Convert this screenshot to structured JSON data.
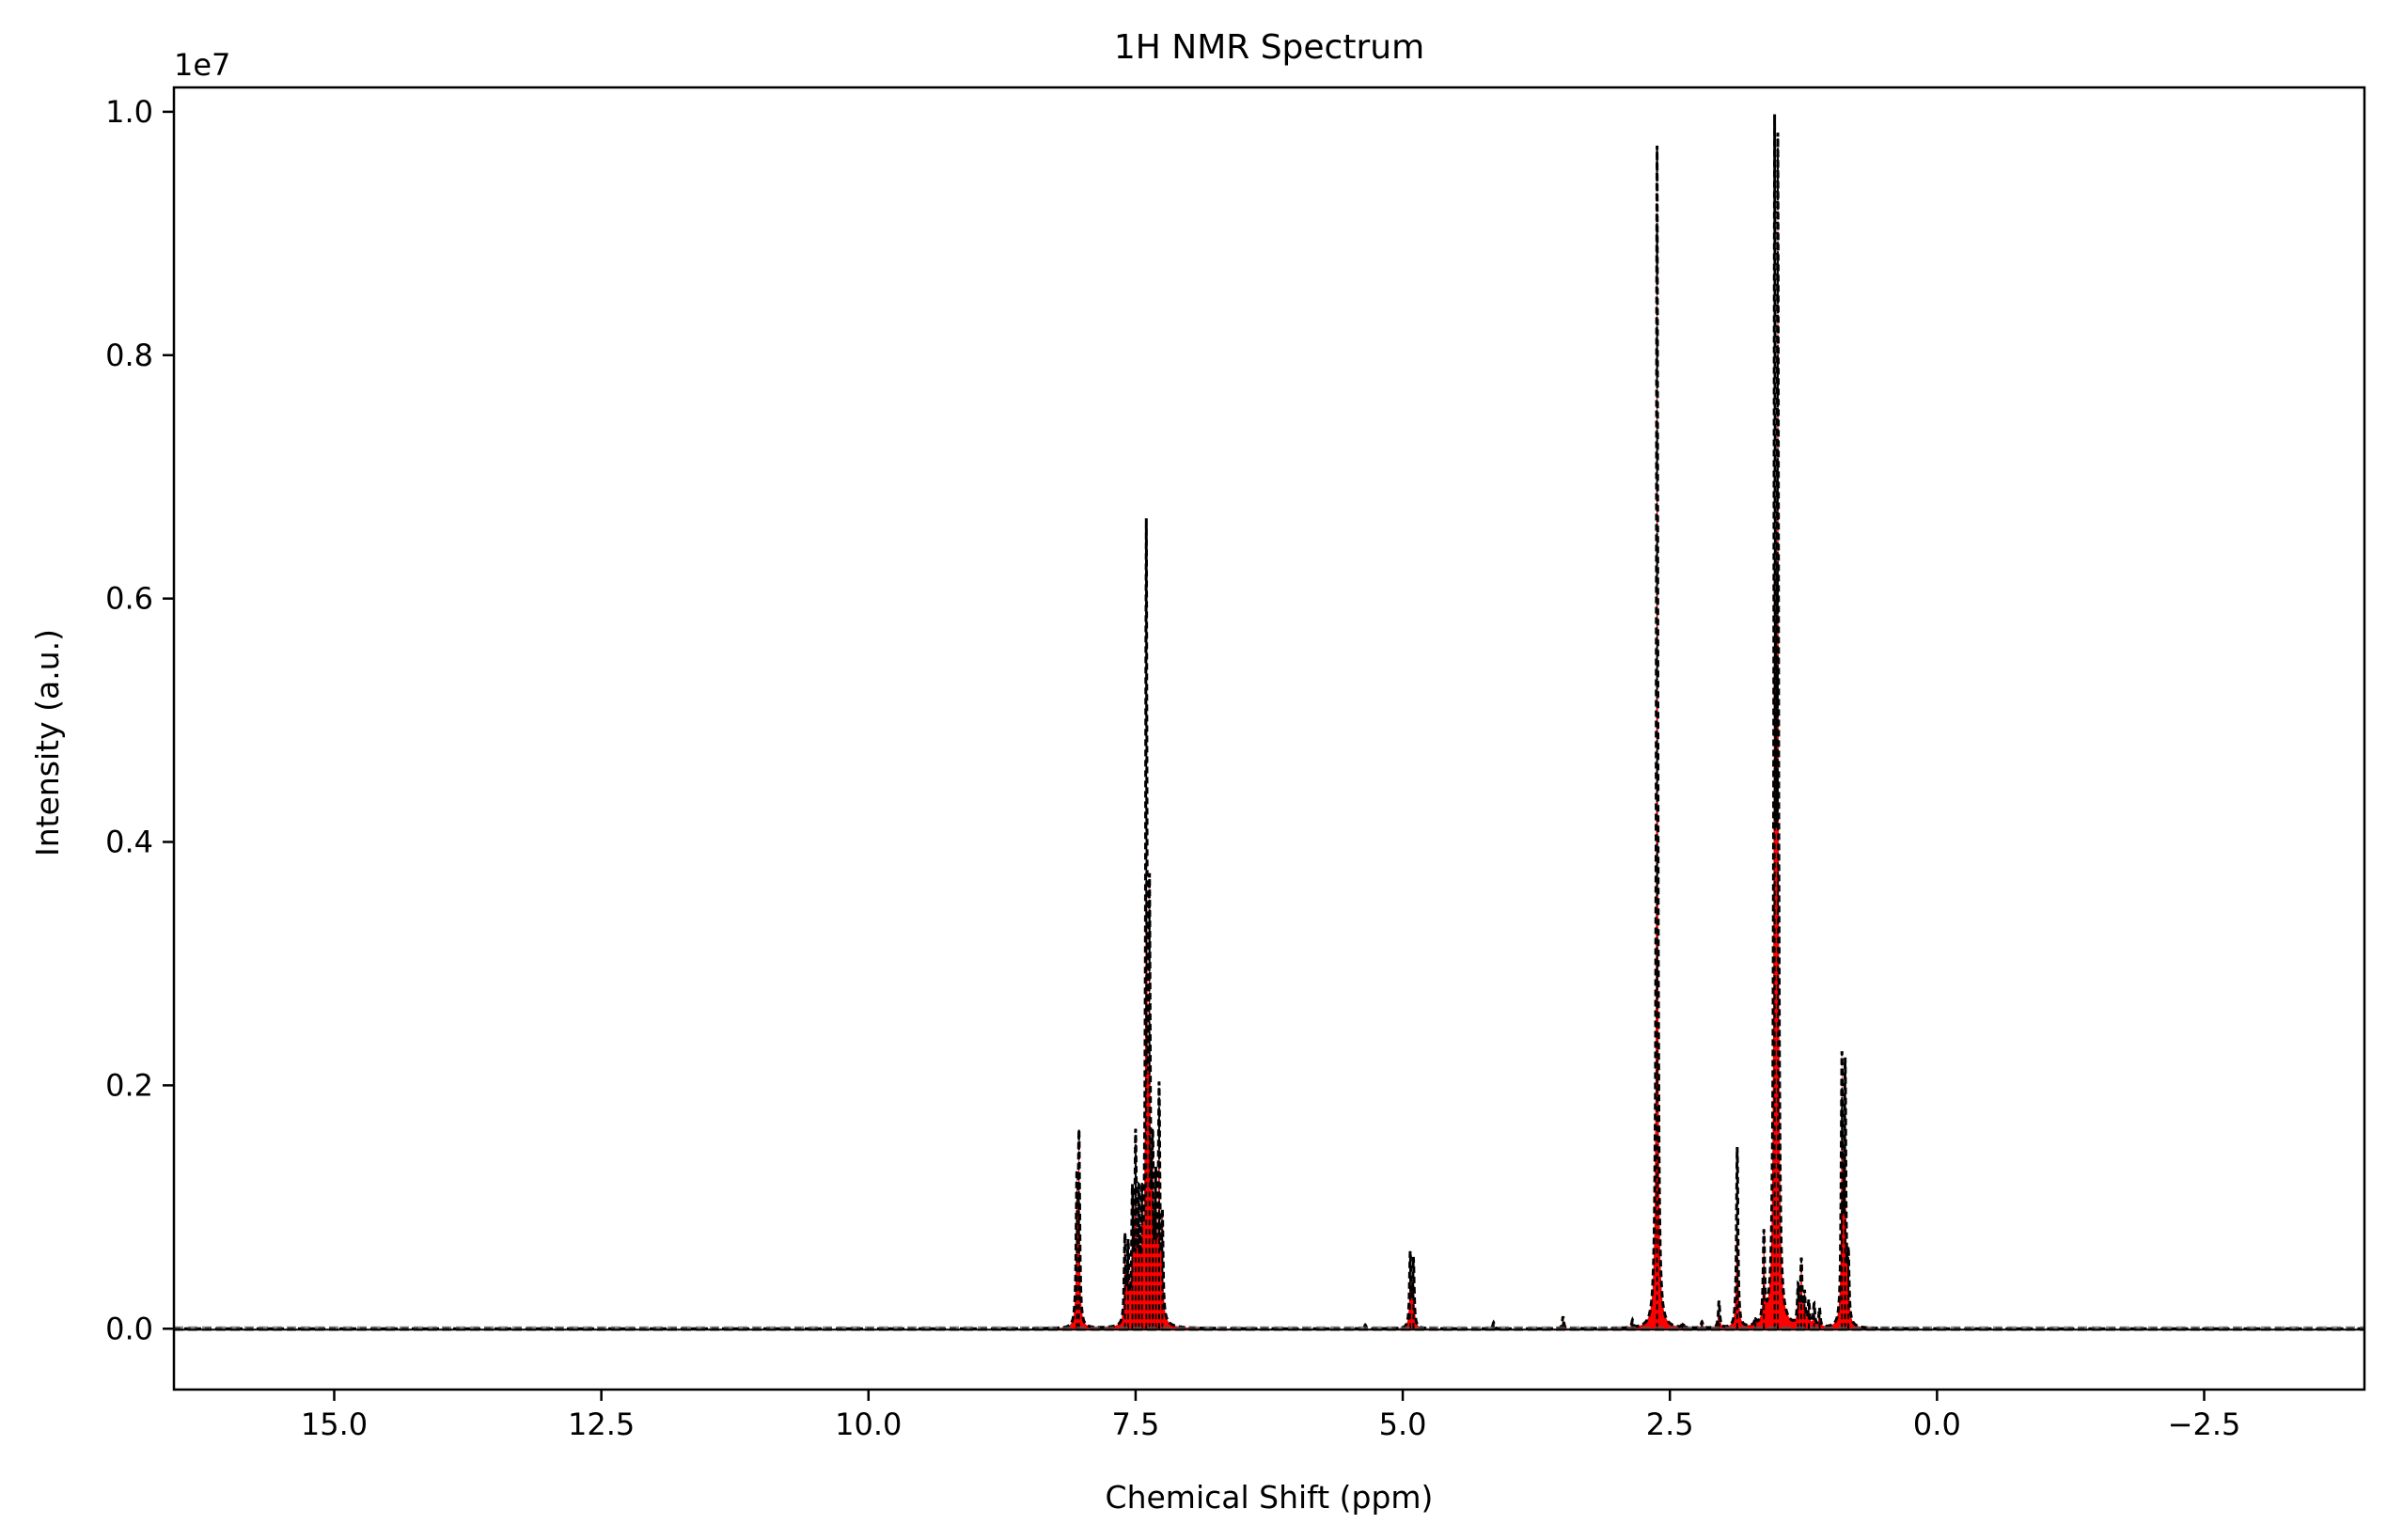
{
  "chart_data": {
    "type": "line",
    "title": "1H NMR Spectrum",
    "xlabel": "Chemical Shift (ppm)",
    "ylabel": "Intensity (a.u.)",
    "y_offset_label": "1e7",
    "xlim": [
      16.5,
      -4.0
    ],
    "ylim": [
      -0.05,
      1.02
    ],
    "x_reversed": true,
    "grid": false,
    "legend": "none",
    "x_ticks": [
      15.0,
      12.5,
      10.0,
      7.5,
      5.0,
      2.5,
      0.0,
      -2.5
    ],
    "x_tick_labels": [
      "15.0",
      "12.5",
      "10.0",
      "7.5",
      "5.0",
      "2.5",
      "0.0",
      "−2.5"
    ],
    "y_ticks": [
      0.0,
      0.2,
      0.4,
      0.6,
      0.8,
      1.0
    ],
    "y_tick_labels": [
      "0.0",
      "0.2",
      "0.4",
      "0.6",
      "0.8",
      "1.0"
    ],
    "series_colors": {
      "fill": "#ff0000",
      "dashed_line": "#000000",
      "baseline": "#000000"
    },
    "peaks": [
      {
        "x": 8.03,
        "y": 0.148
      },
      {
        "x": 8.05,
        "y": 0.11
      },
      {
        "x": 7.6,
        "y": 0.07
      },
      {
        "x": 7.57,
        "y": 0.06
      },
      {
        "x": 7.53,
        "y": 0.1
      },
      {
        "x": 7.5,
        "y": 0.143
      },
      {
        "x": 7.47,
        "y": 0.09
      },
      {
        "x": 7.44,
        "y": 0.08
      },
      {
        "x": 7.4,
        "y": 0.635
      },
      {
        "x": 7.37,
        "y": 0.318
      },
      {
        "x": 7.34,
        "y": 0.12
      },
      {
        "x": 7.31,
        "y": 0.1
      },
      {
        "x": 7.28,
        "y": 0.183
      },
      {
        "x": 7.25,
        "y": 0.08
      },
      {
        "x": 5.35,
        "y": 0.003
      },
      {
        "x": 4.93,
        "y": 0.06
      },
      {
        "x": 4.9,
        "y": 0.055
      },
      {
        "x": 4.15,
        "y": 0.005
      },
      {
        "x": 3.5,
        "y": 0.01
      },
      {
        "x": 2.85,
        "y": 0.006
      },
      {
        "x": 2.62,
        "y": 0.972
      },
      {
        "x": 2.38,
        "y": 0.004
      },
      {
        "x": 2.2,
        "y": 0.005
      },
      {
        "x": 2.04,
        "y": 0.022
      },
      {
        "x": 1.87,
        "y": 0.148
      },
      {
        "x": 1.7,
        "y": 0.005
      },
      {
        "x": 1.62,
        "y": 0.072
      },
      {
        "x": 1.52,
        "y": 0.936
      },
      {
        "x": 1.49,
        "y": 0.92
      },
      {
        "x": 1.3,
        "y": 0.03
      },
      {
        "x": 1.27,
        "y": 0.052
      },
      {
        "x": 1.24,
        "y": 0.025
      },
      {
        "x": 1.2,
        "y": 0.02
      },
      {
        "x": 1.15,
        "y": 0.018
      },
      {
        "x": 1.1,
        "y": 0.015
      },
      {
        "x": 0.89,
        "y": 0.213
      },
      {
        "x": 0.86,
        "y": 0.205
      },
      {
        "x": 0.83,
        "y": 0.05
      }
    ]
  }
}
